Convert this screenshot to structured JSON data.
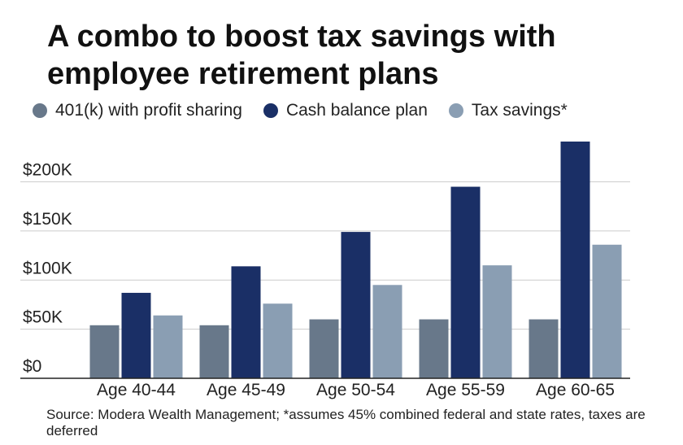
{
  "title": "A combo to boost tax savings with employee retirement plans",
  "source": "Source: Modera Wealth Management; *assumes 45% combined federal and state rates, taxes are deferred",
  "colors": {
    "401k": "#68788a",
    "cash": "#1a2f66",
    "tax": "#8a9eb3",
    "grid": "#cccccc",
    "axis": "#222222"
  },
  "chart_data": {
    "type": "bar",
    "title": "A combo to boost tax savings with employee retirement plans",
    "xlabel": "",
    "ylabel": "",
    "categories": [
      "Age 40-44",
      "Age 45-49",
      "Age 50-54",
      "Age 55-59",
      "Age 60-65"
    ],
    "series": [
      {
        "name": "401(k) with profit sharing",
        "color_key": "401k",
        "values": [
          54000,
          54000,
          60000,
          60000,
          60000
        ]
      },
      {
        "name": "Cash balance plan",
        "color_key": "cash",
        "values": [
          87000,
          114000,
          149000,
          195000,
          241000
        ]
      },
      {
        "name": "Tax savings*",
        "color_key": "tax",
        "values": [
          64000,
          76000,
          95000,
          115000,
          136000
        ]
      }
    ],
    "ylim": [
      0,
      241000
    ],
    "yticks": [
      0,
      50000,
      100000,
      150000,
      200000
    ],
    "ytick_labels": [
      "$0",
      "$50K",
      "$100K",
      "$150K",
      "$200K"
    ],
    "grid": true,
    "legend": "top-left"
  }
}
